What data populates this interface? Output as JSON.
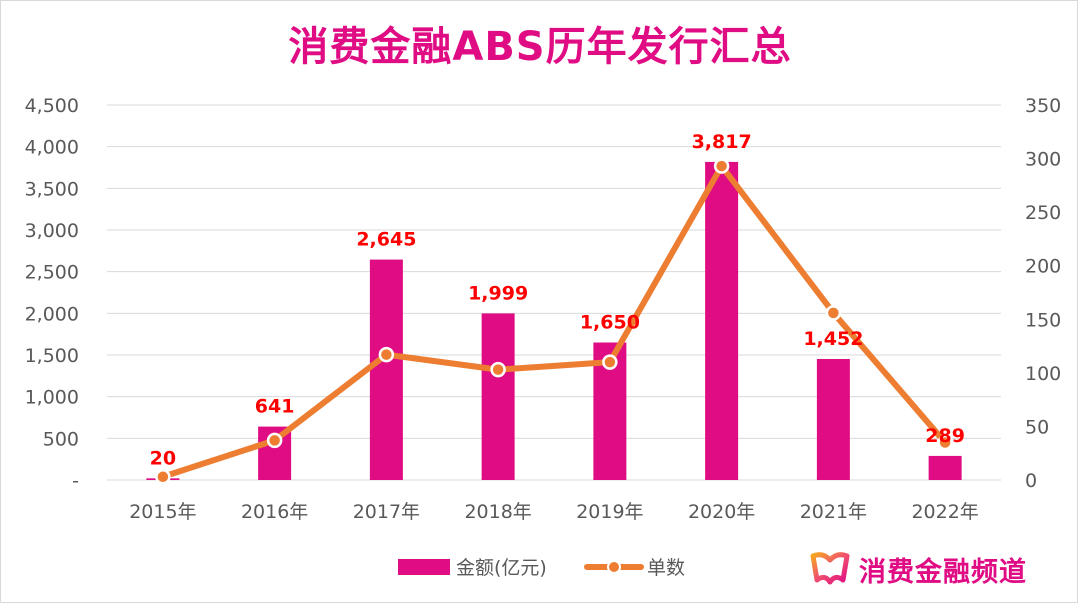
{
  "chart_data": {
    "type": "bar",
    "title": "消费金融ABS历年发行汇总",
    "categories": [
      "2015年",
      "2016年",
      "2017年",
      "2018年",
      "2019年",
      "2020年",
      "2021年",
      "2022年"
    ],
    "series": [
      {
        "name": "金额(亿元)",
        "type": "bar",
        "axis": "left",
        "color": "#df0c84",
        "values": [
          20,
          641,
          2645,
          1999,
          1650,
          3817,
          1452,
          289
        ]
      },
      {
        "name": "单数",
        "type": "line",
        "axis": "right",
        "color": "#ed7d31",
        "values": [
          3,
          37,
          117,
          103,
          110,
          293,
          156,
          35
        ]
      }
    ],
    "data_labels": [
      "20",
      "641",
      "2,645",
      "1,999",
      "1,650",
      "3,817",
      "1,452",
      "289"
    ],
    "y_left": {
      "ylim": [
        0,
        4500
      ],
      "ticks": [
        "-",
        "500",
        "1,000",
        "1,500",
        "2,000",
        "2,500",
        "3,000",
        "3,500",
        "4,000",
        "4,500"
      ]
    },
    "y_right": {
      "ylim": [
        0,
        350
      ],
      "ticks": [
        "0",
        "50",
        "100",
        "150",
        "200",
        "250",
        "300",
        "350"
      ]
    },
    "grid": true,
    "legend": "bottom"
  },
  "brand": {
    "text": "消费金融频道",
    "logo_icon": "ribbon-logo-icon"
  }
}
